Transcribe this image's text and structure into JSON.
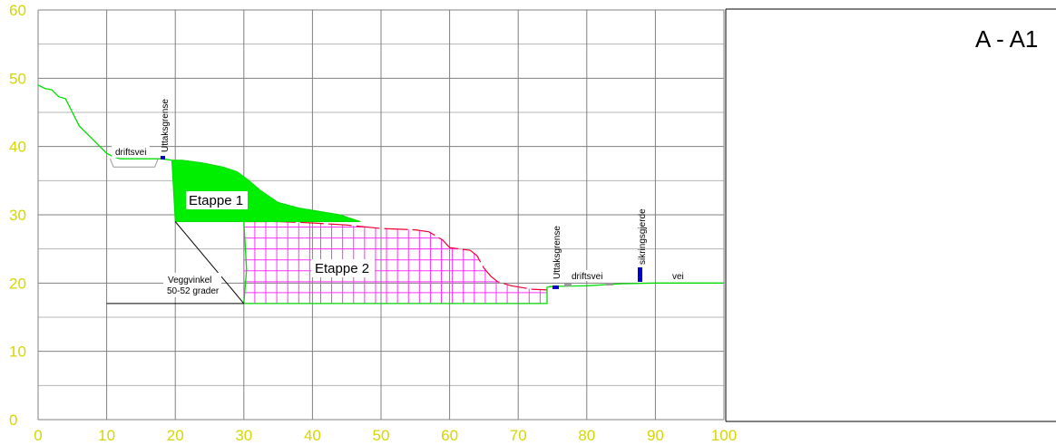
{
  "title": "A - A1",
  "colors": {
    "grid_major": "#808080",
    "grid_minor": "#b4b4b4",
    "tick_labels": "#d6d600",
    "terrain": "#00dd00",
    "etappe1_fill": "#00ee00",
    "etappe2_grid": "#ff33ff",
    "original_terrain": "#ee0033",
    "markers": "#0000cc",
    "road": "#999999"
  },
  "chart_data": {
    "type": "cross-section",
    "x_ticks": [
      "0",
      "10",
      "20",
      "30",
      "40",
      "50",
      "60",
      "70",
      "80",
      "90",
      "100"
    ],
    "y_ticks": [
      "0",
      "10",
      "20",
      "30",
      "40",
      "50",
      "60"
    ],
    "xlim": [
      0,
      100
    ],
    "ylim": [
      0,
      60
    ],
    "terrain_left": [
      [
        0,
        49
      ],
      [
        1,
        48.5
      ],
      [
        2,
        48.3
      ],
      [
        3,
        47.3
      ],
      [
        4,
        47
      ],
      [
        5,
        45
      ],
      [
        6,
        43
      ],
      [
        8,
        41
      ],
      [
        10,
        39
      ],
      [
        11,
        38.5
      ],
      [
        12,
        38.2
      ],
      [
        17,
        38.2
      ],
      [
        18,
        38.2
      ],
      [
        19.5,
        38
      ]
    ],
    "road_right": [
      [
        74.5,
        19.5
      ],
      [
        80,
        19.6
      ],
      [
        85,
        19.9
      ],
      [
        90,
        20
      ],
      [
        95,
        20
      ],
      [
        100,
        20
      ]
    ],
    "etappe1_polygon": [
      [
        19.5,
        38
      ],
      [
        21,
        38
      ],
      [
        24,
        37.6
      ],
      [
        27,
        37
      ],
      [
        29,
        36.3
      ],
      [
        30.5,
        35.2
      ],
      [
        32.5,
        33.5
      ],
      [
        35,
        31.8
      ],
      [
        38,
        31
      ],
      [
        41,
        30.5
      ],
      [
        44,
        30
      ],
      [
        47,
        29
      ],
      [
        20,
        29
      ]
    ],
    "etappe2_top": [
      [
        30,
        29
      ],
      [
        35,
        29
      ],
      [
        40,
        28.8
      ],
      [
        45,
        28.5
      ],
      [
        50,
        28
      ],
      [
        55,
        27.8
      ],
      [
        57,
        27.5
      ],
      [
        59,
        26.3
      ],
      [
        60,
        25.2
      ],
      [
        63,
        24.8
      ],
      [
        64,
        24
      ],
      [
        65,
        22.2
      ],
      [
        66,
        21
      ],
      [
        67,
        20.2
      ],
      [
        69,
        19.6
      ],
      [
        72,
        19.1
      ],
      [
        74.2,
        19
      ]
    ],
    "etappe2_bottom_y": 17,
    "etappe2_bottom_x": [
      30,
      74.2
    ],
    "wall_line": [
      [
        20,
        29
      ],
      [
        30,
        17
      ]
    ],
    "reference_line": [
      [
        10,
        17
      ],
      [
        30,
        17
      ]
    ],
    "labels": {
      "driftsvei_left": "driftsvei",
      "uttaksgrense_left": "Uttaksgrense",
      "etappe1": "Etappe 1",
      "etappe2": "Etappe 2",
      "veggvinkel_line1": "Veggvinkel",
      "veggvinkel_line2": "50-52 grader",
      "uttaksgrense_right": "Uttaksgrense",
      "driftsvei_right": "driftsvei",
      "sikringsgjerde": "sikringsgjerde",
      "vei": "vei"
    }
  }
}
